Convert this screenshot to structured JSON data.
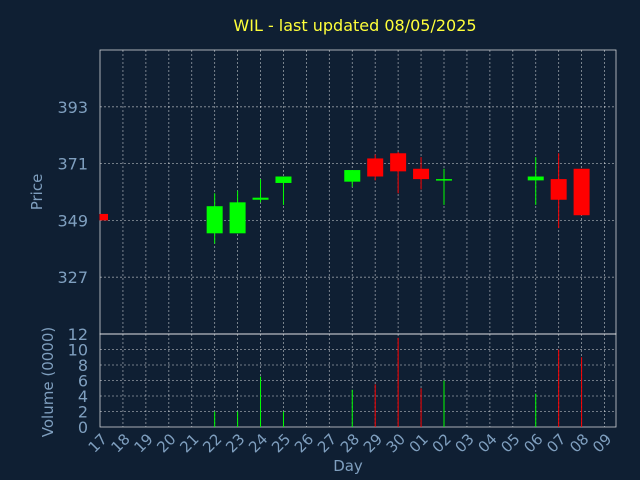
{
  "chart_data": {
    "type": "candlestick",
    "title": "WIL - last updated 08/05/2025",
    "xlabel": "Day",
    "price_panel": {
      "ylabel": "Price",
      "ylim": [
        305,
        415
      ],
      "yticks": [
        327,
        349,
        371,
        393
      ],
      "grid": true
    },
    "volume_panel": {
      "ylabel": "Volume (0000)",
      "ylim": [
        0,
        12
      ],
      "yticks": [
        0,
        2,
        4,
        6,
        8,
        10,
        12
      ],
      "grid": true
    },
    "x_tick_labels": [
      "17",
      "18",
      "19",
      "20",
      "21",
      "22",
      "23",
      "24",
      "25",
      "26",
      "27",
      "28",
      "29",
      "30",
      "01",
      "02",
      "03",
      "04",
      "05",
      "06",
      "07",
      "08",
      "09"
    ],
    "up_color": "#00ff00",
    "down_color": "#ff0000",
    "candles": [
      {
        "day": "17",
        "open": 351.5,
        "close": 349.0,
        "high": 351.5,
        "low": 349.0,
        "volume": 0
      },
      {
        "day": "22",
        "open": 344.0,
        "close": 354.5,
        "high": 359.5,
        "low": 340.0,
        "volume": 2.0
      },
      {
        "day": "23",
        "open": 344.0,
        "close": 356.0,
        "high": 360.5,
        "low": 344.0,
        "volume": 2.0
      },
      {
        "day": "24",
        "open": 357.0,
        "close": 357.8,
        "high": 365.0,
        "low": 356.0,
        "volume": 6.5
      },
      {
        "day": "25",
        "open": 363.5,
        "close": 366.0,
        "high": 366.0,
        "low": 355.0,
        "volume": 2.0
      },
      {
        "day": "28",
        "open": 364.0,
        "close": 368.5,
        "high": 368.5,
        "low": 362.0,
        "volume": 4.8
      },
      {
        "day": "29",
        "open": 373.0,
        "close": 366.0,
        "high": 374.5,
        "low": 364.5,
        "volume": 5.5
      },
      {
        "day": "30",
        "open": 375.0,
        "close": 368.0,
        "high": 375.5,
        "low": 359.5,
        "volume": 11.5
      },
      {
        "day": "01",
        "open": 369.0,
        "close": 365.0,
        "high": 373.5,
        "low": 361.0,
        "volume": 5.0
      },
      {
        "day": "02",
        "open": 364.5,
        "close": 365.0,
        "high": 369.0,
        "low": 355.0,
        "volume": 6.0
      },
      {
        "day": "06",
        "open": 364.5,
        "close": 366.0,
        "high": 373.5,
        "low": 355.0,
        "volume": 4.3
      },
      {
        "day": "07",
        "open": 365.0,
        "close": 357.0,
        "high": 375.0,
        "low": 346.0,
        "volume": 10.0
      },
      {
        "day": "08",
        "open": 369.0,
        "close": 351.0,
        "high": 369.0,
        "low": 351.0,
        "volume": 9.0
      }
    ]
  }
}
